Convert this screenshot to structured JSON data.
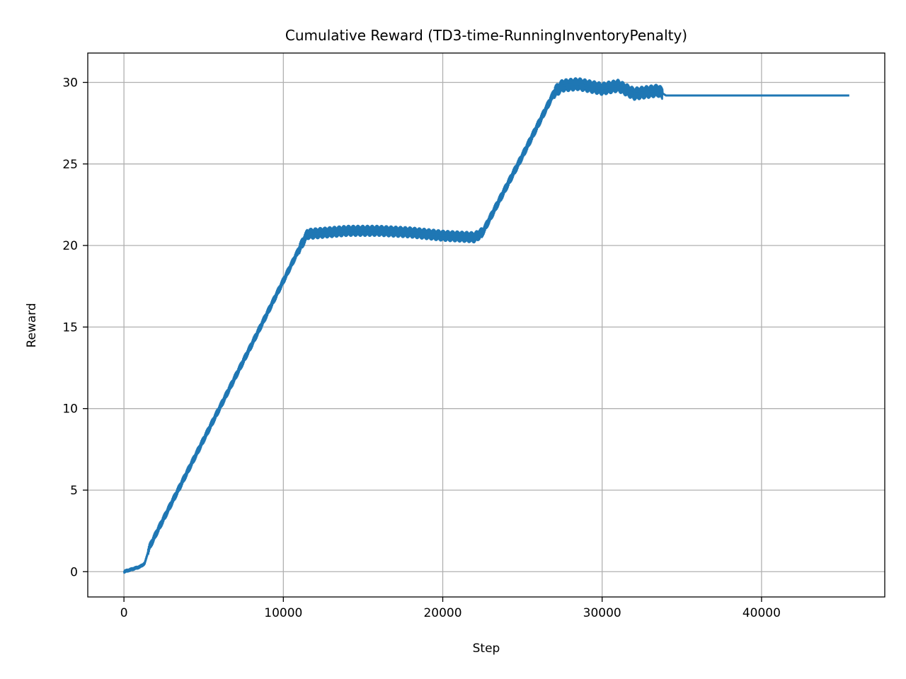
{
  "chart_data": {
    "type": "line",
    "title": "Cumulative Reward (TD3-time-RunningInventoryPenalty)",
    "xlabel": "Step",
    "ylabel": "Reward",
    "xlim": [
      -2270,
      47730
    ],
    "ylim": [
      -1.55,
      31.8
    ],
    "xticks": [
      0,
      10000,
      20000,
      30000,
      40000
    ],
    "xtick_labels": [
      "0",
      "10000",
      "20000",
      "30000",
      "40000"
    ],
    "yticks": [
      0,
      5,
      10,
      15,
      20,
      25,
      30
    ],
    "ytick_labels": [
      "0",
      "5",
      "10",
      "15",
      "20",
      "25",
      "30"
    ],
    "grid": true,
    "legend": "none",
    "series": [
      {
        "color": "#1f77b4",
        "line_width": "thick (dense noisy band)",
        "points": [
          [
            0,
            0.0
          ],
          [
            1000,
            0.3
          ],
          [
            1300,
            0.5
          ],
          [
            1600,
            1.5
          ],
          [
            2000,
            2.3
          ],
          [
            5000,
            8.1
          ],
          [
            8000,
            13.9
          ],
          [
            11000,
            19.8
          ],
          [
            11500,
            20.7
          ],
          [
            14000,
            20.9
          ],
          [
            16000,
            20.9
          ],
          [
            18000,
            20.8
          ],
          [
            20000,
            20.6
          ],
          [
            22000,
            20.5
          ],
          [
            22500,
            20.8
          ],
          [
            25000,
            25.5
          ],
          [
            27000,
            29.4
          ],
          [
            27500,
            29.8
          ],
          [
            28500,
            29.9
          ],
          [
            30000,
            29.6
          ],
          [
            31000,
            29.8
          ],
          [
            32000,
            29.3
          ],
          [
            33500,
            29.5
          ],
          [
            34000,
            29.2
          ],
          [
            45500,
            29.2
          ]
        ]
      }
    ]
  }
}
